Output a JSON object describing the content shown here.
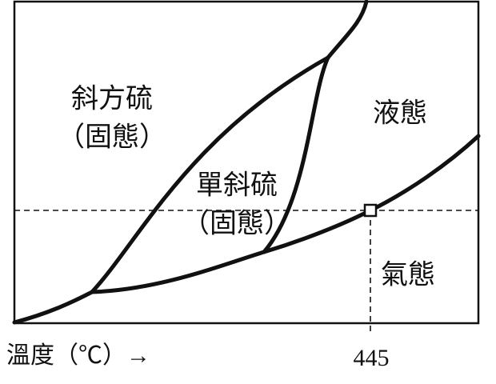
{
  "regions": [
    {
      "name": "斜方硫",
      "state": "（固態）"
    },
    {
      "name": "單斜硫",
      "state": "（固態）"
    },
    {
      "name": "液態"
    },
    {
      "name": "氣態"
    }
  ],
  "x_axis": {
    "label": "溫度（℃）→",
    "marker": 445
  }
}
